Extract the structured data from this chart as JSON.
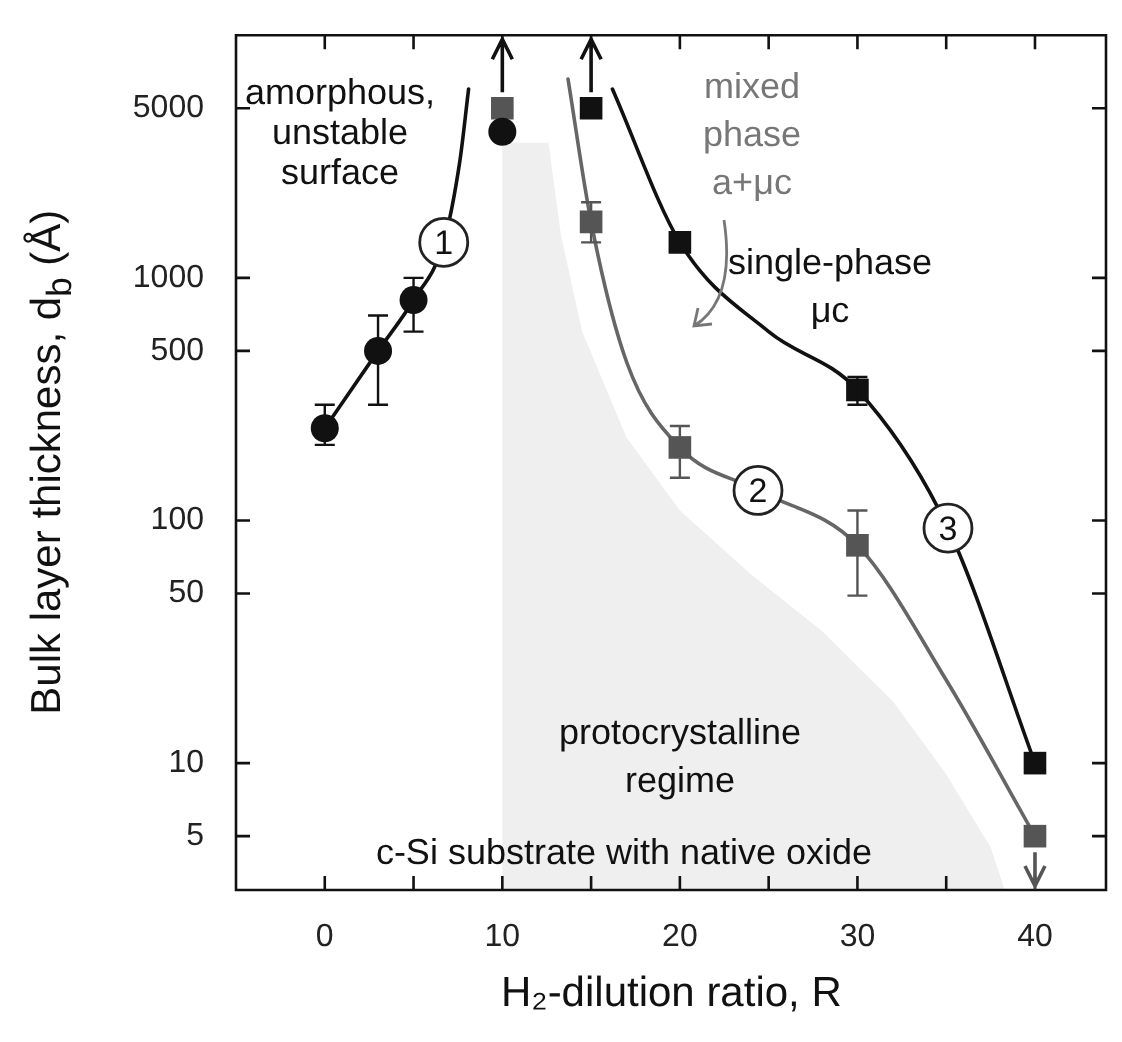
{
  "chart_data": {
    "type": "scatter",
    "xlabel": "H₂-dilution ratio, R",
    "ylabel": "Bulk layer thickness,  d$_{b}$ (Å)",
    "xlim": [
      -5,
      44
    ],
    "xticks": [
      0,
      {
        "value": 5,
        "label": null
      },
      10,
      {
        "value": 15,
        "label": null
      },
      20,
      {
        "value": 25,
        "label": null
      },
      30,
      {
        "value": 35,
        "label": null
      },
      40
    ],
    "ylim": [
      3,
      10000
    ],
    "yticks": [
      5,
      10,
      50,
      100,
      500,
      1000,
      5000
    ],
    "log": "y",
    "grid": false,
    "legend": false,
    "series": [
      {
        "type": "scatter",
        "marker": "circle",
        "color": "#111111",
        "x": [
          0,
          3,
          5,
          10
        ],
        "values": [
          240,
          500,
          810,
          4000
        ],
        "errors": [
          [
            205,
            300
          ],
          [
            300,
            700
          ],
          [
            600,
            1000
          ],
          null
        ]
      },
      {
        "type": "scatter",
        "marker": "square",
        "color": "#555555",
        "x": [
          10,
          15,
          20,
          30,
          40
        ],
        "values": [
          5000,
          1700,
          200,
          79,
          5
        ],
        "errors": [
          null,
          [
            1400,
            2050
          ],
          [
            150,
            245
          ],
          [
            49,
            110
          ],
          null
        ]
      },
      {
        "type": "scatter",
        "marker": "square",
        "color": "#111111",
        "x": [
          15,
          20,
          30,
          40
        ],
        "values": [
          5000,
          1400,
          345,
          10
        ],
        "errors": [
          null,
          null,
          [
            300,
            390
          ],
          null
        ]
      },
      {
        "type": "line",
        "marker": "none",
        "line_style": "solid",
        "color": "#111111",
        "x": [
          0,
          3,
          5,
          6.7,
          7.6,
          8.1
        ],
        "values": [
          240,
          500,
          810,
          1400,
          3000,
          6000
        ]
      },
      {
        "type": "line",
        "marker": "none",
        "line_style": "solid",
        "color": "#666666",
        "x": [
          13.7,
          15,
          17,
          20,
          24.4,
          30,
          35,
          40
        ],
        "values": [
          6600,
          1700,
          450,
          200,
          133,
          79,
          22,
          5
        ]
      },
      {
        "type": "line",
        "marker": "none",
        "line_style": "solid",
        "color": "#111111",
        "x": [
          16.2,
          20,
          25,
          30,
          35.1,
          40
        ],
        "values": [
          6000,
          1400,
          600,
          345,
          93,
          10
        ]
      }
    ],
    "annotations": [
      "amorphous,\nunstable\nsurface",
      "mixed\nphase\na+μc",
      "single-phase\nμc",
      "protocrystalline\nregime",
      "c-Si substrate with native oxide",
      {
        "text": "1",
        "x": 6.7,
        "y": 1400
      },
      {
        "text": "2",
        "x": 24.4,
        "y": 133
      },
      {
        "text": "3",
        "x": 35.1,
        "y": 93
      }
    ]
  }
}
